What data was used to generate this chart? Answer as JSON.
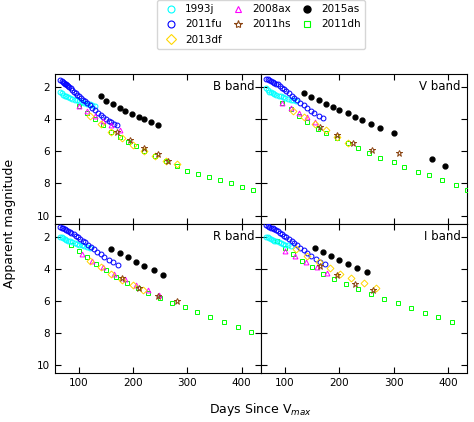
{
  "xlabel": "Days Since V$_{max}$",
  "ylabel": "Apparent magnitude",
  "colors": {
    "1993j": "cyan",
    "2011fu": "blue",
    "2013df": "#FFD700",
    "2008ax": "magenta",
    "2011hs": "#8B4513",
    "2015as": "black",
    "2011dh": "lime"
  },
  "markers": {
    "1993j": "o",
    "2011fu": "o",
    "2013df": "D",
    "2008ax": "^",
    "2011hs": "*",
    "2015as": "o",
    "2011dh": "s"
  },
  "filled": {
    "1993j": false,
    "2011fu": false,
    "2013df": false,
    "2008ax": false,
    "2011hs": false,
    "2015as": true,
    "2011dh": false
  },
  "series": {
    "B": {
      "2011fu": {
        "x": [
          65,
          68,
          70,
          72,
          74,
          76,
          78,
          80,
          82,
          85,
          88,
          91,
          94,
          97,
          100,
          103,
          107,
          111,
          115,
          120,
          125,
          130,
          135,
          140,
          145,
          150,
          155,
          160,
          165,
          170
        ],
        "y": [
          1.6,
          1.65,
          1.7,
          1.75,
          1.8,
          1.85,
          1.9,
          1.95,
          2.0,
          2.1,
          2.2,
          2.3,
          2.4,
          2.5,
          2.6,
          2.7,
          2.8,
          2.9,
          3.0,
          3.15,
          3.3,
          3.45,
          3.6,
          3.75,
          3.9,
          4.0,
          4.1,
          4.2,
          4.3,
          4.4
        ]
      },
      "1993j": {
        "x": [
          65,
          68,
          71,
          74,
          77,
          80,
          84,
          88,
          92,
          96,
          100,
          105,
          110,
          115,
          120,
          125,
          130
        ],
        "y": [
          2.3,
          2.4,
          2.5,
          2.55,
          2.6,
          2.65,
          2.7,
          2.75,
          2.8,
          2.85,
          2.9,
          2.95,
          3.0,
          3.05,
          3.1,
          3.15,
          3.2
        ]
      },
      "2015as": {
        "x": [
          140,
          150,
          162,
          175,
          185,
          198,
          210,
          220,
          232,
          245
        ],
        "y": [
          2.6,
          2.9,
          3.1,
          3.3,
          3.5,
          3.7,
          3.9,
          4.0,
          4.2,
          4.4
        ]
      },
      "2008ax": {
        "x": [
          100,
          115,
          130,
          145,
          160,
          175
        ],
        "y": [
          3.2,
          3.5,
          3.8,
          4.1,
          4.4,
          4.7
        ]
      },
      "2013df": {
        "x": [
          120,
          140,
          160,
          180,
          200,
          220,
          240,
          260,
          280
        ],
        "y": [
          3.8,
          4.3,
          4.8,
          5.2,
          5.6,
          6.0,
          6.3,
          6.6,
          6.8
        ]
      },
      "2011hs": {
        "x": [
          170,
          195,
          220,
          245,
          265
        ],
        "y": [
          4.8,
          5.3,
          5.8,
          6.2,
          6.6
        ]
      },
      "2011dh": {
        "x": [
          100,
          115,
          130,
          145,
          160,
          175,
          190,
          205,
          220,
          240,
          260,
          280,
          300,
          320,
          340,
          360,
          380,
          400,
          420
        ],
        "y": [
          3.2,
          3.6,
          4.0,
          4.4,
          4.8,
          5.1,
          5.4,
          5.7,
          6.0,
          6.3,
          6.6,
          6.9,
          7.2,
          7.4,
          7.6,
          7.8,
          8.0,
          8.2,
          8.4
        ]
      }
    },
    "V": {
      "2011fu": {
        "x": [
          65,
          68,
          71,
          74,
          77,
          80,
          83,
          86,
          90,
          94,
          98,
          102,
          107,
          112,
          117,
          122,
          128,
          134,
          140,
          147,
          154,
          162,
          170
        ],
        "y": [
          1.5,
          1.55,
          1.6,
          1.65,
          1.7,
          1.75,
          1.8,
          1.85,
          1.95,
          2.05,
          2.15,
          2.25,
          2.4,
          2.55,
          2.7,
          2.85,
          3.0,
          3.15,
          3.3,
          3.5,
          3.65,
          3.8,
          3.95
        ]
      },
      "1993j": {
        "x": [
          65,
          68,
          71,
          74,
          77,
          80,
          84,
          88,
          92,
          96,
          100,
          105,
          110,
          115,
          120
        ],
        "y": [
          2.1,
          2.2,
          2.3,
          2.35,
          2.4,
          2.45,
          2.5,
          2.55,
          2.6,
          2.65,
          2.7,
          2.75,
          2.8,
          2.85,
          2.9
        ]
      },
      "2015as": {
        "x": [
          135,
          148,
          162,
          175,
          188,
          200,
          215,
          228,
          242,
          258,
          275,
          300,
          370,
          395
        ],
        "y": [
          2.4,
          2.65,
          2.85,
          3.05,
          3.25,
          3.45,
          3.65,
          3.85,
          4.05,
          4.3,
          4.55,
          4.9,
          6.5,
          6.9
        ]
      },
      "2008ax": {
        "x": [
          95,
          110,
          125,
          140,
          155
        ],
        "y": [
          3.0,
          3.3,
          3.6,
          3.9,
          4.2
        ]
      },
      "2013df": {
        "x": [
          115,
          135,
          155,
          175,
          195,
          215
        ],
        "y": [
          3.5,
          3.9,
          4.3,
          4.7,
          5.1,
          5.5
        ]
      },
      "2011hs": {
        "x": [
          165,
          195,
          225,
          260,
          310
        ],
        "y": [
          4.5,
          5.0,
          5.5,
          5.9,
          6.1
        ]
      },
      "2011dh": {
        "x": [
          95,
          110,
          125,
          140,
          160,
          175,
          195,
          215,
          235,
          255,
          275,
          300,
          320,
          345,
          365,
          390,
          415,
          435
        ],
        "y": [
          3.0,
          3.4,
          3.8,
          4.2,
          4.6,
          4.9,
          5.2,
          5.5,
          5.8,
          6.1,
          6.4,
          6.7,
          7.0,
          7.3,
          7.5,
          7.8,
          8.1,
          8.4
        ]
      }
    },
    "R": {
      "2011fu": {
        "x": [
          65,
          68,
          71,
          74,
          77,
          80,
          83,
          86,
          90,
          94,
          98,
          102,
          107,
          112,
          117,
          122,
          128,
          134,
          140,
          147,
          155,
          163,
          172
        ],
        "y": [
          1.4,
          1.45,
          1.5,
          1.55,
          1.6,
          1.65,
          1.7,
          1.75,
          1.85,
          1.95,
          2.05,
          2.15,
          2.25,
          2.35,
          2.5,
          2.65,
          2.8,
          2.95,
          3.1,
          3.25,
          3.45,
          3.6,
          3.75
        ]
      },
      "1993j": {
        "x": [
          65,
          68,
          71,
          74,
          77,
          80,
          84,
          88,
          92,
          96,
          100,
          105,
          110,
          115,
          120
        ],
        "y": [
          2.0,
          2.05,
          2.1,
          2.15,
          2.2,
          2.25,
          2.3,
          2.35,
          2.4,
          2.45,
          2.5,
          2.55,
          2.6,
          2.65,
          2.7
        ]
      },
      "2015as": {
        "x": [
          160,
          175,
          190,
          205,
          220,
          238,
          255
        ],
        "y": [
          2.8,
          3.05,
          3.3,
          3.55,
          3.8,
          4.1,
          4.4
        ]
      },
      "2008ax": {
        "x": [
          105,
          125,
          145,
          165,
          185,
          205,
          228,
          248
        ],
        "y": [
          3.1,
          3.5,
          3.9,
          4.3,
          4.65,
          5.0,
          5.3,
          5.6
        ]
      },
      "2013df": {
        "x": [
          120,
          140,
          160,
          180,
          200,
          218
        ],
        "y": [
          3.5,
          3.9,
          4.3,
          4.7,
          5.0,
          5.3
        ]
      },
      "2011hs": {
        "x": [
          180,
          210,
          245,
          280
        ],
        "y": [
          4.6,
          5.2,
          5.7,
          6.0
        ]
      },
      "2011dh": {
        "x": [
          85,
          100,
          115,
          132,
          150,
          168,
          188,
          208,
          228,
          250,
          272,
          295,
          318,
          342,
          368,
          393,
          418
        ],
        "y": [
          2.5,
          2.9,
          3.3,
          3.7,
          4.1,
          4.5,
          4.9,
          5.2,
          5.5,
          5.8,
          6.1,
          6.4,
          6.7,
          7.0,
          7.3,
          7.6,
          7.9
        ]
      }
    },
    "I": {
      "2011fu": {
        "x": [
          65,
          68,
          71,
          74,
          77,
          80,
          83,
          86,
          90,
          94,
          98,
          102,
          107,
          112,
          117,
          122,
          128,
          134,
          140,
          148,
          156,
          165,
          174
        ],
        "y": [
          1.3,
          1.35,
          1.4,
          1.45,
          1.5,
          1.55,
          1.6,
          1.65,
          1.75,
          1.85,
          1.95,
          2.05,
          2.15,
          2.25,
          2.4,
          2.55,
          2.7,
          2.85,
          3.0,
          3.2,
          3.4,
          3.55,
          3.7
        ]
      },
      "1993j": {
        "x": [
          65,
          68,
          71,
          74,
          77,
          80,
          84,
          88,
          92,
          96,
          100,
          105,
          110
        ],
        "y": [
          2.0,
          2.05,
          2.1,
          2.15,
          2.2,
          2.25,
          2.3,
          2.35,
          2.4,
          2.45,
          2.5,
          2.55,
          2.6
        ]
      },
      "2015as": {
        "x": [
          155,
          170,
          185,
          200,
          215,
          232,
          250
        ],
        "y": [
          2.7,
          2.95,
          3.2,
          3.45,
          3.7,
          3.95,
          4.2
        ]
      },
      "2008ax": {
        "x": [
          100,
          118,
          138,
          158,
          178
        ],
        "y": [
          2.9,
          3.2,
          3.55,
          3.9,
          4.25
        ]
      },
      "2013df": {
        "x": [
          120,
          140,
          162,
          182,
          202,
          222,
          245,
          268
        ],
        "y": [
          2.8,
          3.2,
          3.6,
          3.95,
          4.3,
          4.6,
          4.9,
          5.2
        ]
      },
      "2011hs": {
        "x": [
          165,
          195,
          228,
          262
        ],
        "y": [
          3.8,
          4.4,
          4.95,
          5.3
        ]
      },
      "2011dh": {
        "x": [
          85,
          100,
          115,
          132,
          150,
          170,
          190,
          212,
          234,
          258,
          282,
          308,
          332,
          358,
          382,
          408
        ],
        "y": [
          2.3,
          2.7,
          3.1,
          3.5,
          3.9,
          4.3,
          4.65,
          4.95,
          5.25,
          5.55,
          5.85,
          6.15,
          6.45,
          6.75,
          7.0,
          7.3
        ]
      }
    }
  },
  "ylim": [
    10.5,
    1.2
  ],
  "xlim": [
    55,
    435
  ],
  "yticks": [
    2,
    4,
    6,
    8,
    10
  ],
  "xticks": [
    100,
    200,
    300,
    400
  ]
}
